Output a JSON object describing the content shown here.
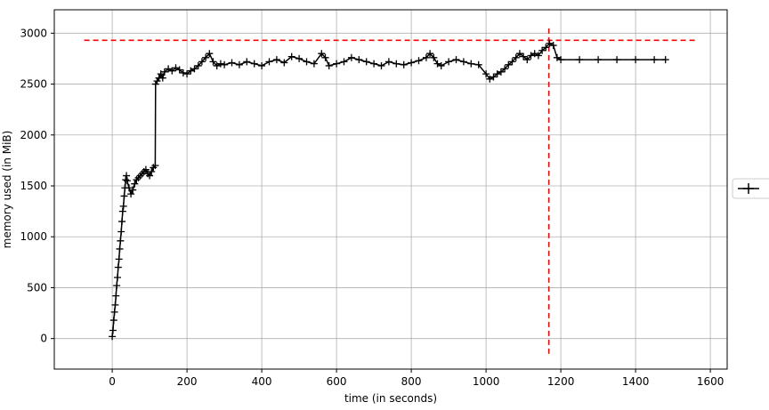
{
  "chart_data": {
    "type": "line",
    "xlabel": "time (in seconds)",
    "ylabel": "memory used (in MiB)",
    "xlim": [
      -155,
      1645
    ],
    "ylim": [
      -300,
      3230
    ],
    "xticks": [
      0,
      200,
      400,
      600,
      800,
      1000,
      1200,
      1400,
      1600
    ],
    "yticks": [
      0,
      500,
      1000,
      1500,
      2000,
      2500,
      3000
    ],
    "grid": true,
    "legend": "center-right, outside the axes, marker only (no label)",
    "series": [
      {
        "marker": "+",
        "color": "#000000",
        "points": [
          [
            0,
            20
          ],
          [
            2,
            80
          ],
          [
            4,
            180
          ],
          [
            6,
            260
          ],
          [
            8,
            330
          ],
          [
            10,
            420
          ],
          [
            12,
            520
          ],
          [
            14,
            600
          ],
          [
            16,
            700
          ],
          [
            18,
            780
          ],
          [
            20,
            880
          ],
          [
            22,
            960
          ],
          [
            24,
            1050
          ],
          [
            26,
            1150
          ],
          [
            28,
            1250
          ],
          [
            30,
            1300
          ],
          [
            32,
            1400
          ],
          [
            34,
            1480
          ],
          [
            36,
            1560
          ],
          [
            38,
            1600
          ],
          [
            40,
            1550
          ],
          [
            45,
            1480
          ],
          [
            50,
            1420
          ],
          [
            55,
            1460
          ],
          [
            60,
            1520
          ],
          [
            65,
            1560
          ],
          [
            70,
            1580
          ],
          [
            75,
            1600
          ],
          [
            80,
            1620
          ],
          [
            85,
            1640
          ],
          [
            90,
            1660
          ],
          [
            95,
            1620
          ],
          [
            100,
            1600
          ],
          [
            105,
            1640
          ],
          [
            110,
            1680
          ],
          [
            115,
            1700
          ],
          [
            116,
            2500
          ],
          [
            120,
            2530
          ],
          [
            125,
            2560
          ],
          [
            130,
            2600
          ],
          [
            135,
            2560
          ],
          [
            140,
            2620
          ],
          [
            150,
            2650
          ],
          [
            160,
            2630
          ],
          [
            170,
            2660
          ],
          [
            180,
            2640
          ],
          [
            190,
            2610
          ],
          [
            200,
            2600
          ],
          [
            210,
            2630
          ],
          [
            220,
            2650
          ],
          [
            230,
            2680
          ],
          [
            240,
            2720
          ],
          [
            250,
            2760
          ],
          [
            260,
            2800
          ],
          [
            270,
            2720
          ],
          [
            280,
            2680
          ],
          [
            290,
            2700
          ],
          [
            300,
            2690
          ],
          [
            320,
            2710
          ],
          [
            340,
            2690
          ],
          [
            360,
            2720
          ],
          [
            380,
            2700
          ],
          [
            400,
            2680
          ],
          [
            420,
            2720
          ],
          [
            440,
            2740
          ],
          [
            460,
            2710
          ],
          [
            480,
            2770
          ],
          [
            500,
            2750
          ],
          [
            520,
            2720
          ],
          [
            540,
            2700
          ],
          [
            560,
            2800
          ],
          [
            570,
            2760
          ],
          [
            580,
            2680
          ],
          [
            600,
            2700
          ],
          [
            620,
            2720
          ],
          [
            640,
            2760
          ],
          [
            660,
            2740
          ],
          [
            680,
            2720
          ],
          [
            700,
            2700
          ],
          [
            720,
            2680
          ],
          [
            740,
            2720
          ],
          [
            760,
            2700
          ],
          [
            780,
            2690
          ],
          [
            800,
            2710
          ],
          [
            820,
            2730
          ],
          [
            840,
            2760
          ],
          [
            850,
            2800
          ],
          [
            860,
            2760
          ],
          [
            870,
            2700
          ],
          [
            880,
            2680
          ],
          [
            900,
            2720
          ],
          [
            920,
            2740
          ],
          [
            940,
            2720
          ],
          [
            960,
            2700
          ],
          [
            980,
            2690
          ],
          [
            1000,
            2600
          ],
          [
            1010,
            2550
          ],
          [
            1020,
            2570
          ],
          [
            1030,
            2600
          ],
          [
            1040,
            2620
          ],
          [
            1050,
            2650
          ],
          [
            1060,
            2690
          ],
          [
            1070,
            2720
          ],
          [
            1080,
            2760
          ],
          [
            1090,
            2800
          ],
          [
            1100,
            2770
          ],
          [
            1110,
            2740
          ],
          [
            1120,
            2780
          ],
          [
            1130,
            2800
          ],
          [
            1140,
            2780
          ],
          [
            1150,
            2830
          ],
          [
            1160,
            2860
          ],
          [
            1170,
            2900
          ],
          [
            1180,
            2880
          ],
          [
            1190,
            2760
          ],
          [
            1200,
            2740
          ],
          [
            1250,
            2740
          ],
          [
            1300,
            2740
          ],
          [
            1350,
            2740
          ],
          [
            1400,
            2740
          ],
          [
            1450,
            2740
          ],
          [
            1480,
            2740
          ]
        ]
      }
    ],
    "reference_lines": [
      {
        "orientation": "horizontal",
        "y": 2930,
        "x_from": -75,
        "x_to": 1560,
        "color": "#ff0000",
        "style": "dashed"
      },
      {
        "orientation": "vertical",
        "x": 1168,
        "y_from": -150,
        "y_to": 3080,
        "color": "#ff0000",
        "style": "dashed"
      }
    ]
  }
}
